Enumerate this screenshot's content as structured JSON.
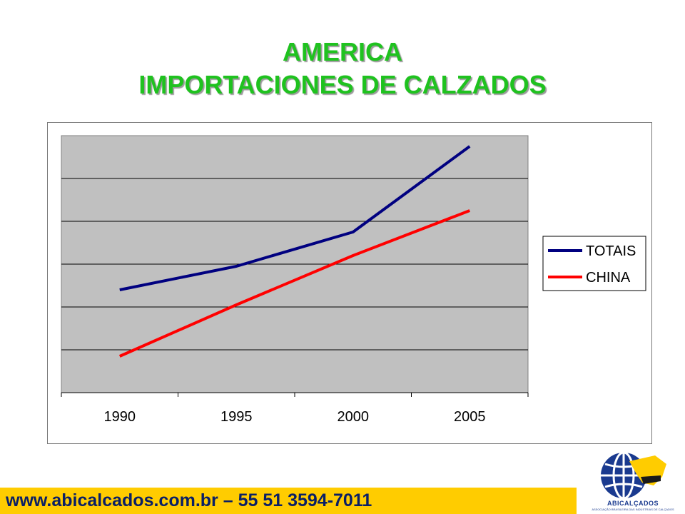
{
  "header": {
    "title_line1": "AMERICA",
    "title_line2": "IMPORTACIONES DE CALZADOS"
  },
  "chart_data": {
    "type": "line",
    "title": "AMERICA IMPORTACIONES DE CALZADOS",
    "categories": [
      "1990",
      "1995",
      "2000",
      "2005"
    ],
    "series": [
      {
        "name": "TOTAIS",
        "color": "#000080",
        "values": [
          2.4,
          2.95,
          3.75,
          5.75
        ]
      },
      {
        "name": "CHINA",
        "color": "#ff0000",
        "values": [
          0.85,
          2.05,
          3.2,
          4.25
        ]
      }
    ],
    "ylim": [
      0,
      6
    ],
    "y_gridlines": [
      1,
      2,
      3,
      4,
      5
    ],
    "y_tick_labels_shown": false,
    "grid": true,
    "plot_background": "#c0c0c0",
    "legend_position": "right"
  },
  "footer": {
    "contact": "www.abicalcados.com.br – 55 51 3594-7011",
    "bar_color": "#ffcc00"
  },
  "logo": {
    "name": "ABICALÇADOS",
    "subtitle": "ASSOCIAÇÃO BRASILEIRA DAS INDÚSTRIAS DE CALÇADOS"
  }
}
